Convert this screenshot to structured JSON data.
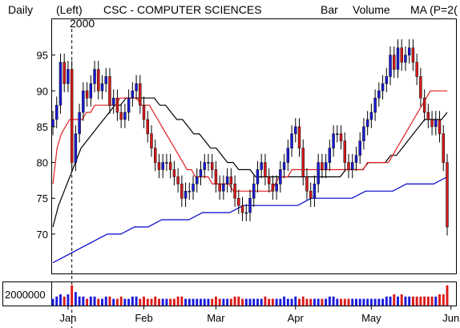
{
  "header": {
    "period": "Daily",
    "scale": "(Left)",
    "ticker": "CSC - COMPUTER SCIENCES",
    "bar_label": "Bar",
    "volume_label": "Volume",
    "ma_label": "MA (P=2(",
    "year_marker": "2000"
  },
  "colors": {
    "up": "#1a1adc",
    "down": "#dc1a1a",
    "volume_label": "#00bb00",
    "ma_label": "#dd0000",
    "ma_short": "#e02020",
    "ma_mid": "#000000",
    "ma_long": "#0000cc"
  },
  "chart_data": {
    "type": "candlestick",
    "y_ticks": [
      70,
      75,
      80,
      85,
      90,
      95
    ],
    "ylim": [
      64.5,
      100
    ],
    "volume_tick_label": "2000000",
    "x_tick_labels": [
      "Jan",
      "Feb",
      "Mar",
      "Apr",
      "May",
      "Jun"
    ],
    "x_tick_index": [
      4,
      24,
      43,
      64,
      84,
      105
    ],
    "year_divider_index": 5,
    "closes": [
      86,
      88,
      94,
      91,
      93,
      80,
      84,
      87,
      90,
      89,
      91,
      93,
      90,
      91,
      92,
      88,
      89,
      87,
      86,
      87,
      89,
      90,
      91,
      88,
      86,
      84,
      82,
      80,
      79,
      80,
      80,
      79,
      78,
      77,
      75,
      76,
      76,
      77,
      78,
      79,
      80,
      80,
      79,
      77,
      76,
      77,
      78,
      77,
      75,
      74,
      73,
      73,
      75,
      77,
      79,
      80,
      78,
      77,
      76,
      77,
      79,
      80,
      82,
      84,
      85,
      82,
      78,
      76,
      75,
      77,
      80,
      79,
      80,
      82,
      84,
      84,
      83,
      80,
      79,
      80,
      81,
      83,
      85,
      86,
      87,
      89,
      90,
      91,
      92,
      95,
      93,
      96,
      94,
      95,
      96,
      94,
      92,
      89,
      87,
      86,
      85,
      86,
      84,
      80,
      71
    ],
    "ma_short": [
      77,
      82,
      84,
      85,
      86,
      86,
      86,
      86,
      87,
      87,
      88,
      88,
      88,
      88,
      88,
      88,
      89,
      89,
      89,
      89,
      89,
      88,
      88,
      88,
      87,
      86,
      85,
      84,
      83,
      82,
      81,
      80,
      79,
      79,
      78,
      78,
      78,
      78,
      77,
      77,
      77,
      77,
      77,
      76,
      76,
      76,
      76,
      76,
      76,
      76,
      76,
      76,
      76,
      77,
      78,
      78,
      78,
      79,
      79,
      79,
      79,
      79,
      79,
      79,
      79,
      79,
      79,
      79,
      79,
      79,
      79,
      79,
      79,
      79,
      79,
      80,
      80,
      80,
      80,
      80,
      80,
      81,
      82,
      83,
      84,
      85,
      86,
      87,
      88,
      89,
      90,
      90,
      90,
      90,
      90
    ],
    "ma_mid": [
      71,
      74,
      76,
      78,
      80,
      82,
      83,
      84,
      85,
      86,
      87,
      88,
      88,
      89,
      89,
      89,
      89,
      89,
      89,
      88,
      88,
      87,
      86,
      86,
      85,
      84,
      84,
      83,
      82,
      82,
      81,
      80,
      80,
      79,
      79,
      79,
      78,
      78,
      78,
      78,
      78,
      78,
      78,
      78,
      78,
      78,
      78,
      78,
      78,
      78,
      78,
      78,
      79,
      79,
      79,
      79,
      80,
      80,
      80,
      80,
      81,
      81,
      82,
      83,
      84,
      85,
      86,
      86,
      86,
      86,
      87
    ],
    "ma_long": [
      66,
      67,
      68,
      69,
      70,
      70,
      71,
      71,
      72,
      72,
      72,
      73,
      73,
      73,
      74,
      74,
      74,
      74,
      74,
      75,
      75,
      75,
      75,
      76,
      76,
      76,
      77,
      77,
      77,
      78
    ],
    "volume": [
      0.3,
      0.4,
      0.5,
      0.4,
      0.5,
      0.9,
      0.6,
      0.4,
      0.4,
      0.3,
      0.4,
      0.4,
      0.3,
      0.3,
      0.4,
      0.4,
      0.3,
      0.3,
      0.4,
      0.3,
      0.3,
      0.4,
      0.4,
      0.3,
      0.4,
      0.3,
      0.3,
      0.4,
      0.3,
      0.3,
      0.3,
      0.3,
      0.3,
      0.4,
      0.4,
      0.3,
      0.3,
      0.3,
      0.3,
      0.3,
      0.3,
      0.3,
      0.3,
      0.4,
      0.3,
      0.3,
      0.3,
      0.3,
      0.4,
      0.4,
      0.3,
      0.3,
      0.3,
      0.3,
      0.3,
      0.3,
      0.4,
      0.3,
      0.3,
      0.3,
      0.3,
      0.4,
      0.3,
      0.3,
      0.4,
      0.3,
      0.4,
      0.3,
      0.3,
      0.3,
      0.3,
      0.3,
      0.3,
      0.4,
      0.4,
      0.3,
      0.3,
      0.3,
      0.3,
      0.3,
      0.3,
      0.3,
      0.3,
      0.3,
      0.3,
      0.3,
      0.3,
      0.3,
      0.4,
      0.4,
      0.5,
      0.4,
      0.5,
      0.4,
      0.4,
      0.4,
      0.4,
      0.4,
      0.4,
      0.4,
      0.4,
      0.4,
      0.5,
      0.5,
      0.9
    ]
  }
}
